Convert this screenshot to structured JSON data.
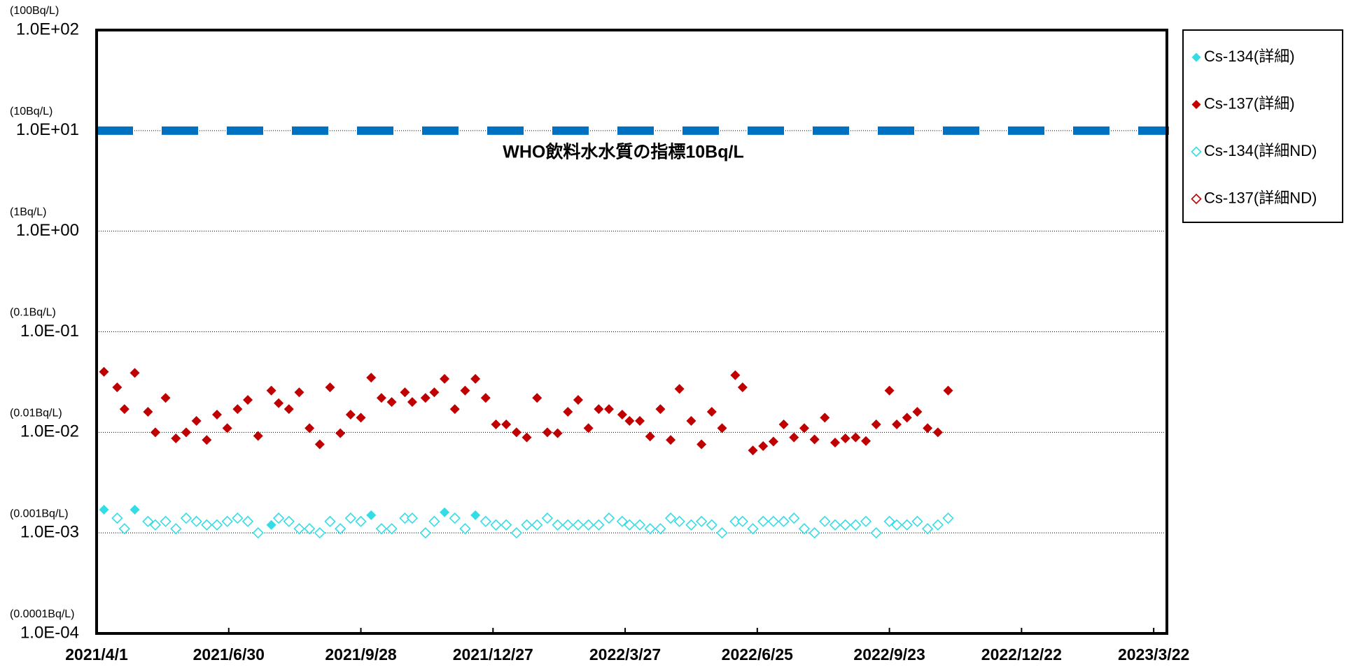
{
  "chart_data": {
    "type": "scatter",
    "y_log": true,
    "grid": true,
    "legend": "right",
    "x": [
      "2021/4/6",
      "2021/4/15",
      "2021/4/20",
      "2021/4/27",
      "2021/5/6",
      "2021/5/11",
      "2021/5/18",
      "2021/5/25",
      "2021/6/1",
      "2021/6/8",
      "2021/6/15",
      "2021/6/22",
      "2021/6/29",
      "2021/7/6",
      "2021/7/13",
      "2021/7/20",
      "2021/7/29",
      "2021/8/3",
      "2021/8/10",
      "2021/8/17",
      "2021/8/24",
      "2021/8/31",
      "2021/9/7",
      "2021/9/14",
      "2021/9/21",
      "2021/9/28",
      "2021/10/5",
      "2021/10/12",
      "2021/10/19",
      "2021/10/28",
      "2021/11/2",
      "2021/11/11",
      "2021/11/17",
      "2021/11/24",
      "2021/12/1",
      "2021/12/8",
      "2021/12/15",
      "2021/12/22",
      "2021/12/29",
      "2022/1/5",
      "2022/1/12",
      "2022/1/19",
      "2022/1/26",
      "2022/2/2",
      "2022/2/9",
      "2022/2/16",
      "2022/2/23",
      "2022/3/2",
      "2022/3/9",
      "2022/3/16",
      "2022/3/25",
      "2022/3/30",
      "2022/4/6",
      "2022/4/13",
      "2022/4/20",
      "2022/4/27",
      "2022/5/3",
      "2022/5/11",
      "2022/5/18",
      "2022/5/25",
      "2022/6/1",
      "2022/6/10",
      "2022/6/15",
      "2022/6/22",
      "2022/6/29",
      "2022/7/6",
      "2022/7/13",
      "2022/7/20",
      "2022/7/27",
      "2022/8/3",
      "2022/8/10",
      "2022/8/17",
      "2022/8/24",
      "2022/8/31",
      "2022/9/7",
      "2022/9/14",
      "2022/9/23",
      "2022/9/28",
      "2022/10/5",
      "2022/10/12",
      "2022/10/19",
      "2022/10/26",
      "2022/11/2"
    ],
    "series": [
      {
        "name": "Cs-134(詳細)",
        "color": "#33dde6",
        "marker": "filled",
        "values": [
          0.0017,
          null,
          null,
          0.0017,
          null,
          null,
          null,
          null,
          null,
          null,
          null,
          null,
          null,
          null,
          null,
          null,
          0.0012,
          null,
          null,
          null,
          null,
          null,
          null,
          null,
          null,
          null,
          0.0015,
          null,
          null,
          null,
          null,
          null,
          null,
          0.0016,
          null,
          null,
          0.0015,
          null,
          null,
          null,
          null,
          null,
          null,
          null,
          null,
          null,
          null,
          null,
          null,
          null,
          null,
          null,
          null,
          null,
          null,
          null,
          null,
          null,
          null,
          null,
          null,
          null,
          null,
          null,
          null,
          null,
          null,
          null,
          null,
          null,
          null,
          null,
          null,
          null,
          null,
          null,
          null,
          null,
          null,
          null,
          null,
          null,
          null
        ]
      },
      {
        "name": "Cs-137(詳細)",
        "color": "#c00000",
        "marker": "filled",
        "values": [
          0.04,
          0.028,
          0.017,
          0.039,
          0.016,
          0.01,
          0.022,
          0.0087,
          0.01,
          0.013,
          0.0084,
          0.015,
          0.011,
          0.017,
          0.021,
          0.0092,
          0.026,
          0.0195,
          0.017,
          0.025,
          0.011,
          0.0076,
          0.028,
          0.0098,
          0.015,
          0.014,
          0.035,
          0.022,
          0.02,
          0.025,
          0.02,
          0.022,
          0.025,
          0.034,
          0.017,
          0.026,
          0.034,
          0.022,
          0.012,
          0.012,
          0.01,
          0.0089,
          0.022,
          0.01,
          0.0098,
          0.016,
          0.021,
          0.011,
          0.017,
          0.017,
          0.015,
          0.013,
          0.013,
          0.0091,
          0.017,
          0.0084,
          0.027,
          0.013,
          0.0076,
          0.016,
          0.011,
          0.037,
          0.028,
          0.0066,
          0.0073,
          0.0081,
          0.012,
          0.0089,
          0.011,
          0.0085,
          0.014,
          0.0079,
          0.0087,
          0.0089,
          0.0082,
          0.012,
          0.026,
          0.012,
          0.014,
          0.016,
          0.011,
          0.01,
          0.026
        ]
      },
      {
        "name": "Cs-134(詳細ND)",
        "color": "#33dde6",
        "marker": "hollow",
        "values": [
          null,
          0.0014,
          0.0011,
          null,
          0.0013,
          0.0012,
          0.0013,
          0.0011,
          0.0014,
          0.0013,
          0.0012,
          0.0012,
          0.0013,
          0.0014,
          0.0013,
          0.001,
          null,
          0.0014,
          0.0013,
          0.0011,
          0.0011,
          0.001,
          0.0013,
          0.0011,
          0.0014,
          0.0013,
          null,
          0.0011,
          0.0011,
          0.0014,
          0.0014,
          0.001,
          0.0013,
          null,
          0.0014,
          0.0011,
          null,
          0.0013,
          0.0012,
          0.0012,
          0.001,
          0.0012,
          0.0012,
          0.0014,
          0.0012,
          0.0012,
          0.0012,
          0.0012,
          0.0012,
          0.0014,
          0.0013,
          0.0012,
          0.0012,
          0.0011,
          0.0011,
          0.0014,
          0.0013,
          0.0012,
          0.0013,
          0.0012,
          0.001,
          0.0013,
          0.0013,
          0.0011,
          0.0013,
          0.0013,
          0.0013,
          0.0014,
          0.0011,
          0.001,
          0.0013,
          0.0012,
          0.0012,
          0.0012,
          0.0013,
          0.001,
          0.0013,
          0.0012,
          0.0012,
          0.0013,
          0.0011,
          0.0012,
          0.0014
        ]
      },
      {
        "name": "Cs-137(詳細ND)",
        "color": "#c00000",
        "marker": "hollow",
        "values": [
          null,
          null,
          null,
          null,
          null,
          null,
          null,
          null,
          null,
          null,
          null,
          null,
          null,
          null,
          null,
          null,
          null,
          null,
          null,
          null,
          null,
          null,
          null,
          null,
          null,
          null,
          null,
          null,
          null,
          null,
          null,
          null,
          null,
          null,
          null,
          null,
          null,
          null,
          null,
          null,
          null,
          null,
          null,
          null,
          null,
          null,
          null,
          null,
          null,
          null,
          null,
          null,
          null,
          null,
          null,
          null,
          null,
          null,
          null,
          null,
          null,
          null,
          null,
          null,
          null,
          null,
          null,
          null,
          null,
          null,
          null,
          null,
          null,
          null,
          null,
          null,
          null,
          null,
          null,
          null,
          null,
          null,
          null
        ]
      }
    ],
    "xlim": [
      "2021/4/1",
      "2023/3/31"
    ],
    "xticks": [
      "2021/4/1",
      "2021/6/30",
      "2021/9/28",
      "2021/12/27",
      "2022/3/27",
      "2022/6/25",
      "2022/9/23",
      "2022/12/22",
      "2023/3/22"
    ],
    "ylim": [
      0.0001,
      100
    ],
    "yticks": [
      {
        "value": 0.0001,
        "label": "1.0E-04"
      },
      {
        "value": 0.001,
        "label": "1.0E-03"
      },
      {
        "value": 0.01,
        "label": "1.0E-02"
      },
      {
        "value": 0.1,
        "label": "1.0E-01"
      },
      {
        "value": 1,
        "label": "1.0E+00"
      },
      {
        "value": 10,
        "label": "1.0E+01"
      },
      {
        "value": 100,
        "label": "1.0E+02"
      }
    ],
    "ytick_notes": [
      "(0.0001Bq/L)",
      "(0.001Bq/L)",
      "(0.01Bq/L)",
      "(0.1Bq/L)",
      "(1Bq/L)",
      "(10Bq/L)",
      "(100Bq/L)"
    ],
    "hlines": [
      {
        "value": 10,
        "label": "WHO飲料水水質の指標10Bq/L",
        "color": "#0070c0"
      }
    ]
  }
}
